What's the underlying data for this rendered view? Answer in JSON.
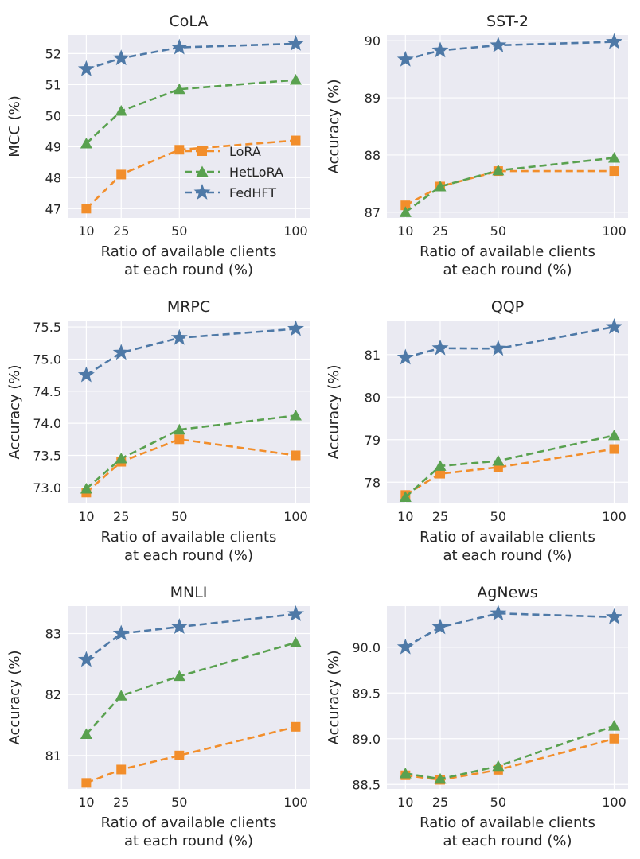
{
  "figure": {
    "colors": {
      "LoRA": "#f28e2b",
      "HetLoRA": "#59a14f",
      "FedHFT": "#4e79a7"
    },
    "legend": [
      "LoRA",
      "HetLoRA",
      "FedHFT"
    ]
  },
  "chart_data": [
    {
      "type": "line",
      "title": "CoLA",
      "xlabel": [
        "Ratio of available clients",
        "at each round (%)"
      ],
      "ylabel": "MCC (%)",
      "x": [
        10,
        25,
        50,
        100
      ],
      "xticks": [
        "10",
        "25",
        "50",
        "100"
      ],
      "ylim": [
        46.7,
        52.6
      ],
      "yticks": [
        47,
        48,
        49,
        50,
        51,
        52
      ],
      "ytick_labels": [
        "47",
        "48",
        "49",
        "50",
        "51",
        "52"
      ],
      "legend": true,
      "series": [
        {
          "name": "LoRA",
          "marker": "square",
          "values": [
            47.0,
            48.1,
            48.9,
            49.2
          ]
        },
        {
          "name": "HetLoRA",
          "marker": "triangle",
          "values": [
            49.1,
            50.15,
            50.85,
            51.15
          ]
        },
        {
          "name": "FedHFT",
          "marker": "star",
          "values": [
            51.5,
            51.85,
            52.2,
            52.32
          ]
        }
      ]
    },
    {
      "type": "line",
      "title": "SST-2",
      "xlabel": [
        "Ratio of available clients",
        "at each round (%)"
      ],
      "ylabel": "Accuracy (%)",
      "x": [
        10,
        25,
        50,
        100
      ],
      "xticks": [
        "10",
        "25",
        "50",
        "100"
      ],
      "ylim": [
        86.9,
        90.1
      ],
      "yticks": [
        87,
        88,
        89,
        90
      ],
      "ytick_labels": [
        "87",
        "88",
        "89",
        "90"
      ],
      "legend": false,
      "series": [
        {
          "name": "LoRA",
          "marker": "square",
          "values": [
            87.12,
            87.45,
            87.72,
            87.72
          ]
        },
        {
          "name": "HetLoRA",
          "marker": "triangle",
          "values": [
            87.0,
            87.45,
            87.73,
            87.95
          ]
        },
        {
          "name": "FedHFT",
          "marker": "star",
          "values": [
            89.67,
            89.83,
            89.92,
            89.98
          ]
        }
      ]
    },
    {
      "type": "line",
      "title": "MRPC",
      "xlabel": [
        "Ratio of available clients",
        "at each round (%)"
      ],
      "ylabel": "Accuracy (%)",
      "x": [
        10,
        25,
        50,
        100
      ],
      "xticks": [
        "10",
        "25",
        "50",
        "100"
      ],
      "ylim": [
        72.75,
        75.6
      ],
      "yticks": [
        73.0,
        73.5,
        74.0,
        74.5,
        75.0,
        75.5
      ],
      "ytick_labels": [
        "73.0",
        "73.5",
        "74.0",
        "74.5",
        "75.0",
        "75.5"
      ],
      "legend": false,
      "series": [
        {
          "name": "LoRA",
          "marker": "square",
          "values": [
            72.92,
            73.4,
            73.75,
            73.5
          ]
        },
        {
          "name": "HetLoRA",
          "marker": "triangle",
          "values": [
            72.98,
            73.45,
            73.9,
            74.12
          ]
        },
        {
          "name": "FedHFT",
          "marker": "star",
          "values": [
            74.75,
            75.1,
            75.33,
            75.47
          ]
        }
      ]
    },
    {
      "type": "line",
      "title": "QQP",
      "xlabel": [
        "Ratio of available clients",
        "at each round (%)"
      ],
      "ylabel": "Accuracy (%)",
      "x": [
        10,
        25,
        50,
        100
      ],
      "xticks": [
        "10",
        "25",
        "50",
        "100"
      ],
      "ylim": [
        77.5,
        81.8
      ],
      "yticks": [
        78,
        79,
        80,
        81
      ],
      "ytick_labels": [
        "78",
        "79",
        "80",
        "81"
      ],
      "legend": false,
      "series": [
        {
          "name": "LoRA",
          "marker": "square",
          "values": [
            77.7,
            78.2,
            78.35,
            78.78
          ]
        },
        {
          "name": "HetLoRA",
          "marker": "triangle",
          "values": [
            77.65,
            78.38,
            78.5,
            79.1
          ]
        },
        {
          "name": "FedHFT",
          "marker": "star",
          "values": [
            80.93,
            81.15,
            81.14,
            81.65
          ]
        }
      ]
    },
    {
      "type": "line",
      "title": "MNLI",
      "xlabel": [
        "Ratio of available clients",
        "at each round (%)"
      ],
      "ylabel": "Accuracy (%)",
      "x": [
        10,
        25,
        50,
        100
      ],
      "xticks": [
        "10",
        "25",
        "50",
        "100"
      ],
      "ylim": [
        80.45,
        83.45
      ],
      "yticks": [
        81,
        82,
        83
      ],
      "ytick_labels": [
        "81",
        "82",
        "83"
      ],
      "legend": false,
      "series": [
        {
          "name": "LoRA",
          "marker": "square",
          "values": [
            80.55,
            80.77,
            81.0,
            81.47
          ]
        },
        {
          "name": "HetLoRA",
          "marker": "triangle",
          "values": [
            81.35,
            81.98,
            82.3,
            82.85
          ]
        },
        {
          "name": "FedHFT",
          "marker": "star",
          "values": [
            82.57,
            83.0,
            83.11,
            83.32
          ]
        }
      ]
    },
    {
      "type": "line",
      "title": "AgNews",
      "xlabel": [
        "Ratio of available clients",
        "at each round (%)"
      ],
      "ylabel": "Accuracy (%)",
      "x": [
        10,
        25,
        50,
        100
      ],
      "xticks": [
        "10",
        "25",
        "50",
        "100"
      ],
      "ylim": [
        88.45,
        90.45
      ],
      "yticks": [
        88.5,
        89.0,
        89.5,
        90.0
      ],
      "ytick_labels": [
        "88.5",
        "89.0",
        "89.5",
        "90.0"
      ],
      "legend": false,
      "series": [
        {
          "name": "LoRA",
          "marker": "square",
          "values": [
            88.6,
            88.55,
            88.66,
            89.0
          ]
        },
        {
          "name": "HetLoRA",
          "marker": "triangle",
          "values": [
            88.62,
            88.56,
            88.7,
            89.14
          ]
        },
        {
          "name": "FedHFT",
          "marker": "star",
          "values": [
            90.0,
            90.22,
            90.37,
            90.33
          ]
        }
      ]
    }
  ]
}
